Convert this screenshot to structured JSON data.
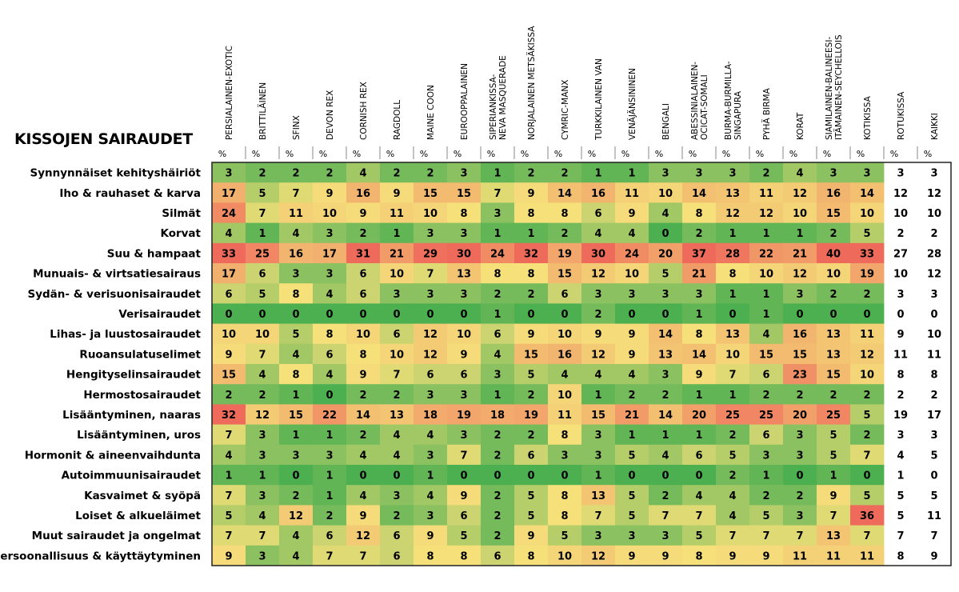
{
  "chart_data": {
    "type": "heatmap",
    "title": "KISSOJEN SAIRAUDET",
    "unit_label": "%",
    "columns": [
      [
        "PERSIALAINEN-EXOTIC"
      ],
      [
        "BRITTILÄINEN"
      ],
      [
        "SFINX"
      ],
      [
        "DEVON REX"
      ],
      [
        "CORNISH REX"
      ],
      [
        "RAGDOLL"
      ],
      [
        "MAINE COON"
      ],
      [
        "EUROOPPALAINEN"
      ],
      [
        "SIPERIANKISSA-",
        "NEVA MASQUERADE"
      ],
      [
        "NORJALAINEN METSÄKISSA"
      ],
      [
        "CYMRIC-MANX"
      ],
      [
        "TURKKILAINEN VAN"
      ],
      [
        "VENÄJÄNSININEN"
      ],
      [
        "BENGALI"
      ],
      [
        "ABESSINIALAINEN-",
        "OCICAT-SOMALI"
      ],
      [
        "BURMA-BURMILLA-",
        "SINGAPURA"
      ],
      [
        "PYHÄ BIRMA"
      ],
      [
        "KORAT"
      ],
      [
        "SIAMILAINEN-BALINEESI-",
        "ITÄMAINEN-SEYCHELLOIS"
      ],
      [
        "KOTIKISSA"
      ],
      [
        "ROTUKISSA"
      ],
      [
        "KAIKKI"
      ]
    ],
    "rows": [
      "Synnynnäiset kehityshäiriöt",
      "Iho & rauhaset & karva",
      "Silmät",
      "Korvat",
      "Suu & hampaat",
      "Munuais- & virtsatiesairaus",
      "Sydän- & verisuonisairaudet",
      "Verisairaudet",
      "Lihas- ja luustosairaudet",
      "Ruoansulatuselimet",
      "Hengityselinsairaudet",
      "Hermostosairaudet",
      "Lisääntyminen, naaras",
      "Lisääntyminen, uros",
      "Hormonit & aineenvaihdunta",
      "Autoimmuunisairaudet",
      "Kasvaimet & syöpä",
      "Loiset & alkueläimet",
      "Muut sairaudet ja ongelmat",
      "Persoonallisuus & käyttäytyminen"
    ],
    "values": [
      [
        3,
        2,
        2,
        2,
        4,
        2,
        2,
        3,
        1,
        2,
        2,
        1,
        1,
        3,
        3,
        3,
        2,
        4,
        3,
        3,
        3,
        3
      ],
      [
        17,
        5,
        7,
        9,
        16,
        9,
        15,
        15,
        7,
        9,
        14,
        16,
        11,
        10,
        14,
        13,
        11,
        12,
        16,
        14,
        12,
        12
      ],
      [
        24,
        7,
        11,
        10,
        9,
        11,
        10,
        8,
        3,
        8,
        8,
        6,
        9,
        4,
        8,
        12,
        12,
        10,
        15,
        10,
        10,
        10
      ],
      [
        4,
        1,
        4,
        3,
        2,
        1,
        3,
        3,
        1,
        1,
        2,
        4,
        4,
        0,
        2,
        1,
        1,
        1,
        2,
        5,
        2,
        2
      ],
      [
        33,
        25,
        16,
        17,
        31,
        21,
        29,
        30,
        24,
        32,
        19,
        30,
        24,
        20,
        37,
        28,
        22,
        21,
        40,
        33,
        27,
        28
      ],
      [
        17,
        6,
        3,
        3,
        6,
        10,
        7,
        13,
        8,
        8,
        15,
        12,
        10,
        5,
        21,
        8,
        10,
        12,
        10,
        19,
        10,
        12
      ],
      [
        6,
        5,
        8,
        4,
        6,
        3,
        3,
        3,
        2,
        2,
        6,
        3,
        3,
        3,
        3,
        1,
        1,
        3,
        2,
        2,
        3,
        3
      ],
      [
        0,
        0,
        0,
        0,
        0,
        0,
        0,
        0,
        1,
        0,
        0,
        2,
        0,
        0,
        1,
        0,
        1,
        0,
        0,
        0,
        0,
        0
      ],
      [
        10,
        10,
        5,
        8,
        10,
        6,
        12,
        10,
        6,
        9,
        10,
        9,
        9,
        14,
        8,
        13,
        4,
        16,
        13,
        11,
        9,
        10
      ],
      [
        9,
        7,
        4,
        6,
        8,
        10,
        12,
        9,
        4,
        15,
        16,
        12,
        9,
        13,
        14,
        10,
        15,
        15,
        13,
        12,
        11,
        11
      ],
      [
        15,
        4,
        8,
        4,
        9,
        7,
        6,
        6,
        3,
        5,
        4,
        4,
        4,
        3,
        9,
        7,
        6,
        23,
        15,
        10,
        8,
        8
      ],
      [
        2,
        2,
        1,
        0,
        2,
        2,
        3,
        3,
        1,
        2,
        10,
        1,
        2,
        2,
        1,
        1,
        2,
        2,
        2,
        2,
        2,
        2
      ],
      [
        32,
        12,
        15,
        22,
        14,
        13,
        18,
        19,
        18,
        19,
        11,
        15,
        21,
        14,
        20,
        25,
        25,
        20,
        25,
        5,
        19,
        17
      ],
      [
        7,
        3,
        1,
        1,
        2,
        4,
        4,
        3,
        2,
        2,
        8,
        3,
        1,
        1,
        1,
        2,
        6,
        3,
        5,
        2,
        3,
        3
      ],
      [
        4,
        3,
        3,
        3,
        4,
        4,
        3,
        7,
        2,
        6,
        3,
        3,
        5,
        4,
        6,
        5,
        3,
        3,
        5,
        7,
        4,
        5
      ],
      [
        1,
        1,
        0,
        1,
        0,
        0,
        1,
        0,
        0,
        0,
        0,
        1,
        0,
        0,
        0,
        2,
        1,
        0,
        1,
        0,
        1,
        0
      ],
      [
        7,
        3,
        2,
        1,
        4,
        3,
        4,
        9,
        2,
        5,
        8,
        13,
        5,
        2,
        4,
        4,
        2,
        2,
        9,
        5,
        5,
        5
      ],
      [
        5,
        4,
        12,
        2,
        9,
        2,
        3,
        6,
        2,
        5,
        8,
        7,
        5,
        7,
        7,
        4,
        5,
        3,
        7,
        36,
        5,
        11
      ],
      [
        7,
        7,
        4,
        6,
        12,
        6,
        9,
        5,
        2,
        9,
        5,
        3,
        3,
        3,
        5,
        7,
        7,
        7,
        13,
        7,
        7,
        7
      ],
      [
        9,
        3,
        4,
        7,
        7,
        6,
        8,
        8,
        6,
        8,
        10,
        12,
        9,
        9,
        8,
        9,
        9,
        11,
        11,
        11,
        8,
        9
      ]
    ],
    "uncolored_columns": [
      "ROTUKISSA",
      "KAIKKI"
    ],
    "color_scale": {
      "low": "#4caf50",
      "mid": "#f5e07a",
      "high": "#ee6b5c"
    }
  }
}
